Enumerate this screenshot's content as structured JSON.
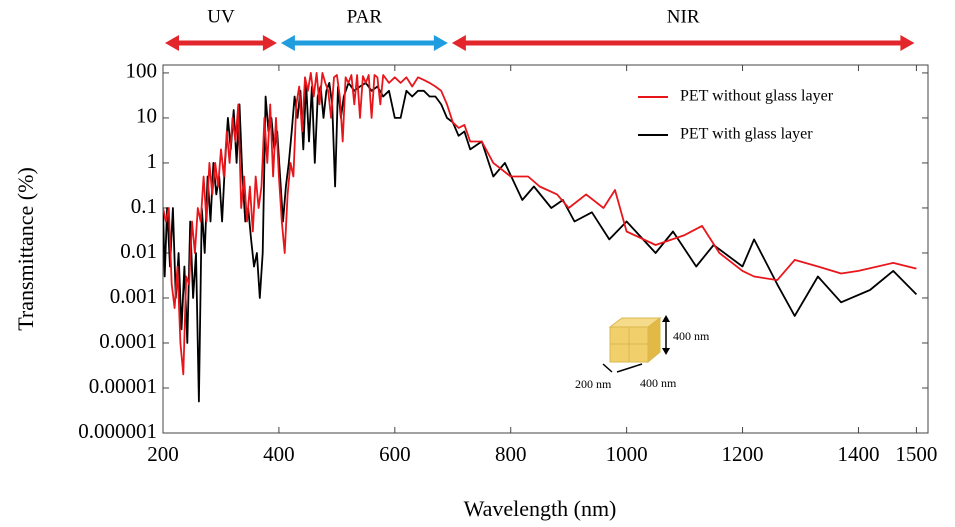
{
  "chart_data": {
    "type": "line",
    "x_label": "Wavelength (nm)",
    "y_label": "Transmittance (%)",
    "log_y": true,
    "xlim": [
      200,
      1520
    ],
    "ylim": [
      1e-06,
      150
    ],
    "xticks": [
      200,
      400,
      600,
      800,
      1000,
      1200,
      1400,
      1500
    ],
    "yticks": [
      100,
      10,
      1,
      0.1,
      0.01,
      0.001,
      0.0001,
      1e-05,
      1e-06
    ],
    "legend": "top-right",
    "regions": [
      {
        "label": "UV",
        "start": 200,
        "end": 400,
        "color": "#e3262b"
      },
      {
        "label": "PAR",
        "start": 400,
        "end": 695,
        "color": "#1f9ddf"
      },
      {
        "label": "NIR",
        "start": 695,
        "end": 1500,
        "color": "#e3262b"
      }
    ],
    "inset_labels": [
      "400 nm",
      "200 nm",
      "400 nm"
    ],
    "series": [
      {
        "name": "PET without glass layer",
        "color": "#e8161b",
        "x": [
          200,
          205,
          210,
          215,
          220,
          225,
          230,
          235,
          240,
          245,
          250,
          255,
          260,
          265,
          270,
          275,
          280,
          285,
          290,
          295,
          300,
          305,
          310,
          315,
          320,
          325,
          330,
          335,
          340,
          345,
          350,
          355,
          360,
          365,
          370,
          375,
          380,
          385,
          390,
          395,
          400,
          405,
          410,
          415,
          420,
          425,
          430,
          435,
          440,
          445,
          450,
          455,
          460,
          465,
          470,
          475,
          480,
          485,
          490,
          495,
          500,
          505,
          510,
          515,
          520,
          525,
          530,
          535,
          540,
          545,
          550,
          555,
          560,
          565,
          570,
          575,
          580,
          590,
          600,
          610,
          620,
          630,
          640,
          650,
          660,
          670,
          680,
          690,
          700,
          710,
          720,
          730,
          750,
          770,
          800,
          830,
          850,
          880,
          900,
          930,
          960,
          980,
          1000,
          1050,
          1100,
          1130,
          1160,
          1200,
          1220,
          1260,
          1290,
          1330,
          1370,
          1400,
          1460,
          1500
        ],
        "values": [
          0.1,
          0.05,
          0.1,
          0.002,
          0.0006,
          0.005,
          0.0001,
          2e-05,
          0.003,
          0.002,
          0.05,
          0.01,
          0.1,
          0.05,
          0.5,
          0.05,
          1,
          0.2,
          1,
          0.3,
          2,
          0.5,
          5,
          1,
          10,
          3,
          20,
          0.1,
          0.5,
          0.05,
          0.3,
          0.03,
          0.5,
          0.1,
          0.3,
          10,
          1,
          20,
          0.5,
          10,
          0.5,
          0.05,
          0.01,
          0.2,
          1,
          0.5,
          20,
          50,
          5,
          80,
          40,
          100,
          30,
          100,
          20,
          100,
          60,
          40,
          10,
          80,
          90,
          30,
          3,
          80,
          60,
          90,
          20,
          90,
          10,
          85,
          60,
          90,
          10,
          90,
          80,
          20,
          90,
          60,
          80,
          60,
          80,
          50,
          80,
          70,
          60,
          50,
          40,
          20,
          8,
          6,
          7,
          3,
          3,
          1,
          0.5,
          0.5,
          0.3,
          0.2,
          0.1,
          0.2,
          0.1,
          0.25,
          0.03,
          0.015,
          0.025,
          0.04,
          0.01,
          0.004,
          0.003,
          0.0025,
          0.007,
          0.005,
          0.0035,
          0.004,
          0.006,
          0.0045
        ]
      },
      {
        "name": "PET with glass layer",
        "color": "#000000",
        "x": [
          200,
          203,
          207,
          212,
          217,
          222,
          227,
          232,
          237,
          242,
          247,
          252,
          257,
          262,
          267,
          272,
          277,
          282,
          287,
          292,
          297,
          302,
          307,
          312,
          317,
          322,
          327,
          332,
          337,
          342,
          347,
          352,
          357,
          362,
          367,
          372,
          377,
          382,
          387,
          392,
          397,
          402,
          407,
          412,
          417,
          422,
          427,
          432,
          437,
          442,
          447,
          452,
          457,
          462,
          467,
          472,
          477,
          482,
          487,
          492,
          497,
          502,
          507,
          512,
          520,
          530,
          540,
          550,
          560,
          570,
          580,
          590,
          600,
          610,
          620,
          630,
          640,
          650,
          660,
          670,
          680,
          690,
          700,
          710,
          720,
          730,
          750,
          770,
          790,
          820,
          840,
          870,
          890,
          910,
          940,
          970,
          1000,
          1050,
          1080,
          1120,
          1150,
          1200,
          1220,
          1260,
          1290,
          1330,
          1370,
          1420,
          1460,
          1500
        ],
        "values": [
          0.1,
          0.003,
          0.1,
          0.005,
          0.1,
          0.001,
          0.01,
          0.0002,
          0.005,
          0.0001,
          0.05,
          0.001,
          0.01,
          5e-06,
          0.1,
          0.01,
          0.5,
          0.05,
          1,
          0.2,
          0.5,
          0.05,
          1,
          10,
          2,
          15,
          1,
          20,
          0.5,
          0.05,
          0.1,
          0.02,
          0.005,
          0.01,
          0.001,
          0.01,
          30,
          5,
          10,
          2,
          5,
          0.5,
          0.05,
          0.3,
          1,
          5,
          30,
          10,
          40,
          2,
          60,
          3,
          50,
          1,
          30,
          50,
          10,
          40,
          60,
          20,
          0.3,
          50,
          10,
          30,
          60,
          40,
          50,
          60,
          40,
          50,
          30,
          40,
          10,
          10,
          40,
          30,
          40,
          40,
          30,
          30,
          20,
          10,
          8,
          4,
          5,
          2,
          3,
          0.5,
          1,
          0.15,
          0.3,
          0.1,
          0.15,
          0.05,
          0.08,
          0.02,
          0.05,
          0.01,
          0.03,
          0.005,
          0.015,
          0.005,
          0.02,
          0.002,
          0.0004,
          0.003,
          0.0008,
          0.0015,
          0.004,
          0.0012
        ]
      }
    ]
  }
}
